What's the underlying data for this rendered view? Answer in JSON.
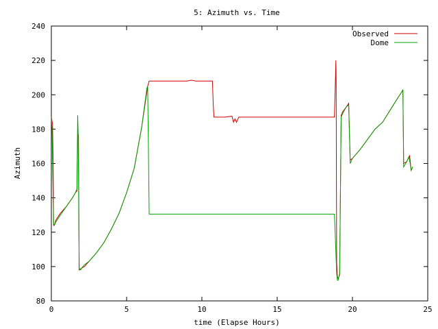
{
  "chart_data": {
    "type": "line",
    "title": "5: Azimuth vs. Time",
    "xlabel": "time (Elapse Hours)",
    "ylabel": "Azimuth",
    "xlim": [
      0,
      25
    ],
    "ylim": [
      80,
      240
    ],
    "xticks": [
      0,
      5,
      10,
      15,
      20,
      25
    ],
    "yticks": [
      80,
      100,
      120,
      140,
      160,
      180,
      200,
      220,
      240
    ],
    "grid": false,
    "legend": "top-right",
    "series": [
      {
        "name": "Observed",
        "color": "#cc0000",
        "points": [
          [
            0.0,
            187
          ],
          [
            0.08,
            183
          ],
          [
            0.12,
            160
          ],
          [
            0.15,
            124
          ],
          [
            0.2,
            124
          ],
          [
            0.3,
            127
          ],
          [
            0.6,
            131
          ],
          [
            1.0,
            135
          ],
          [
            1.4,
            140
          ],
          [
            1.6,
            143
          ],
          [
            1.7,
            144
          ],
          [
            1.75,
            176
          ],
          [
            1.8,
            177
          ],
          [
            1.85,
            98
          ],
          [
            2.0,
            99
          ],
          [
            2.2,
            100
          ],
          [
            2.5,
            103
          ],
          [
            3.0,
            108
          ],
          [
            3.5,
            114
          ],
          [
            4.0,
            122
          ],
          [
            4.5,
            131
          ],
          [
            5.0,
            143
          ],
          [
            5.5,
            157
          ],
          [
            6.0,
            181
          ],
          [
            6.4,
            205
          ],
          [
            6.5,
            208
          ],
          [
            7.0,
            208
          ],
          [
            9.0,
            208
          ],
          [
            9.3,
            208.5
          ],
          [
            9.6,
            208
          ],
          [
            10.5,
            208
          ],
          [
            10.7,
            208
          ],
          [
            10.75,
            195
          ],
          [
            10.8,
            187
          ],
          [
            11.0,
            187
          ],
          [
            11.5,
            187
          ],
          [
            12.0,
            187.5
          ],
          [
            12.1,
            184
          ],
          [
            12.2,
            186
          ],
          [
            12.3,
            184
          ],
          [
            12.45,
            187
          ],
          [
            13.0,
            187
          ],
          [
            15.0,
            187
          ],
          [
            17.0,
            187
          ],
          [
            18.8,
            187
          ],
          [
            18.85,
            202
          ],
          [
            18.9,
            220
          ],
          [
            18.92,
            205
          ],
          [
            18.95,
            102
          ],
          [
            19.0,
            94
          ],
          [
            19.05,
            93
          ],
          [
            19.15,
            95
          ],
          [
            19.25,
            188
          ],
          [
            19.35,
            190
          ],
          [
            19.6,
            193
          ],
          [
            19.75,
            195
          ],
          [
            19.85,
            162
          ],
          [
            20.0,
            163
          ],
          [
            20.5,
            168
          ],
          [
            21.0,
            174
          ],
          [
            21.5,
            180
          ],
          [
            22.0,
            184
          ],
          [
            22.5,
            191
          ],
          [
            23.0,
            198
          ],
          [
            23.3,
            202
          ],
          [
            23.35,
            203
          ],
          [
            23.4,
            160
          ],
          [
            23.6,
            161
          ],
          [
            23.8,
            164.5
          ],
          [
            23.85,
            160
          ],
          [
            23.9,
            156
          ],
          [
            24.0,
            158
          ]
        ]
      },
      {
        "name": "Dome",
        "color": "#00a000",
        "points": [
          [
            0.0,
            186
          ],
          [
            0.05,
            180
          ],
          [
            0.1,
            150
          ],
          [
            0.15,
            125
          ],
          [
            0.2,
            124
          ],
          [
            0.3,
            126
          ],
          [
            0.6,
            130
          ],
          [
            1.0,
            135
          ],
          [
            1.4,
            140
          ],
          [
            1.6,
            143
          ],
          [
            1.7,
            145
          ],
          [
            1.75,
            188
          ],
          [
            1.78,
            178
          ],
          [
            1.85,
            99
          ],
          [
            1.95,
            98
          ],
          [
            2.0,
            99
          ],
          [
            2.2,
            101
          ],
          [
            2.5,
            103
          ],
          [
            3.0,
            108
          ],
          [
            3.5,
            114
          ],
          [
            4.0,
            122
          ],
          [
            4.5,
            131
          ],
          [
            5.0,
            143
          ],
          [
            5.5,
            157
          ],
          [
            6.0,
            181
          ],
          [
            6.35,
            204
          ],
          [
            6.4,
            205
          ],
          [
            6.5,
            130.5
          ],
          [
            7.0,
            130.5
          ],
          [
            10.0,
            130.5
          ],
          [
            13.0,
            130.5
          ],
          [
            16.0,
            130.5
          ],
          [
            18.8,
            130.5
          ],
          [
            18.85,
            120
          ],
          [
            18.95,
            96
          ],
          [
            19.0,
            92
          ],
          [
            19.05,
            92
          ],
          [
            19.15,
            96
          ],
          [
            19.25,
            187
          ],
          [
            19.4,
            190
          ],
          [
            19.6,
            193
          ],
          [
            19.75,
            194
          ],
          [
            19.85,
            160
          ],
          [
            20.0,
            163
          ],
          [
            20.5,
            168
          ],
          [
            21.0,
            174
          ],
          [
            21.5,
            180
          ],
          [
            22.0,
            184
          ],
          [
            22.5,
            191
          ],
          [
            23.0,
            198
          ],
          [
            23.3,
            202
          ],
          [
            23.35,
            203
          ],
          [
            23.4,
            158
          ],
          [
            23.6,
            161
          ],
          [
            23.75,
            164
          ],
          [
            23.85,
            159
          ],
          [
            23.9,
            156
          ],
          [
            24.0,
            158
          ]
        ]
      }
    ]
  }
}
